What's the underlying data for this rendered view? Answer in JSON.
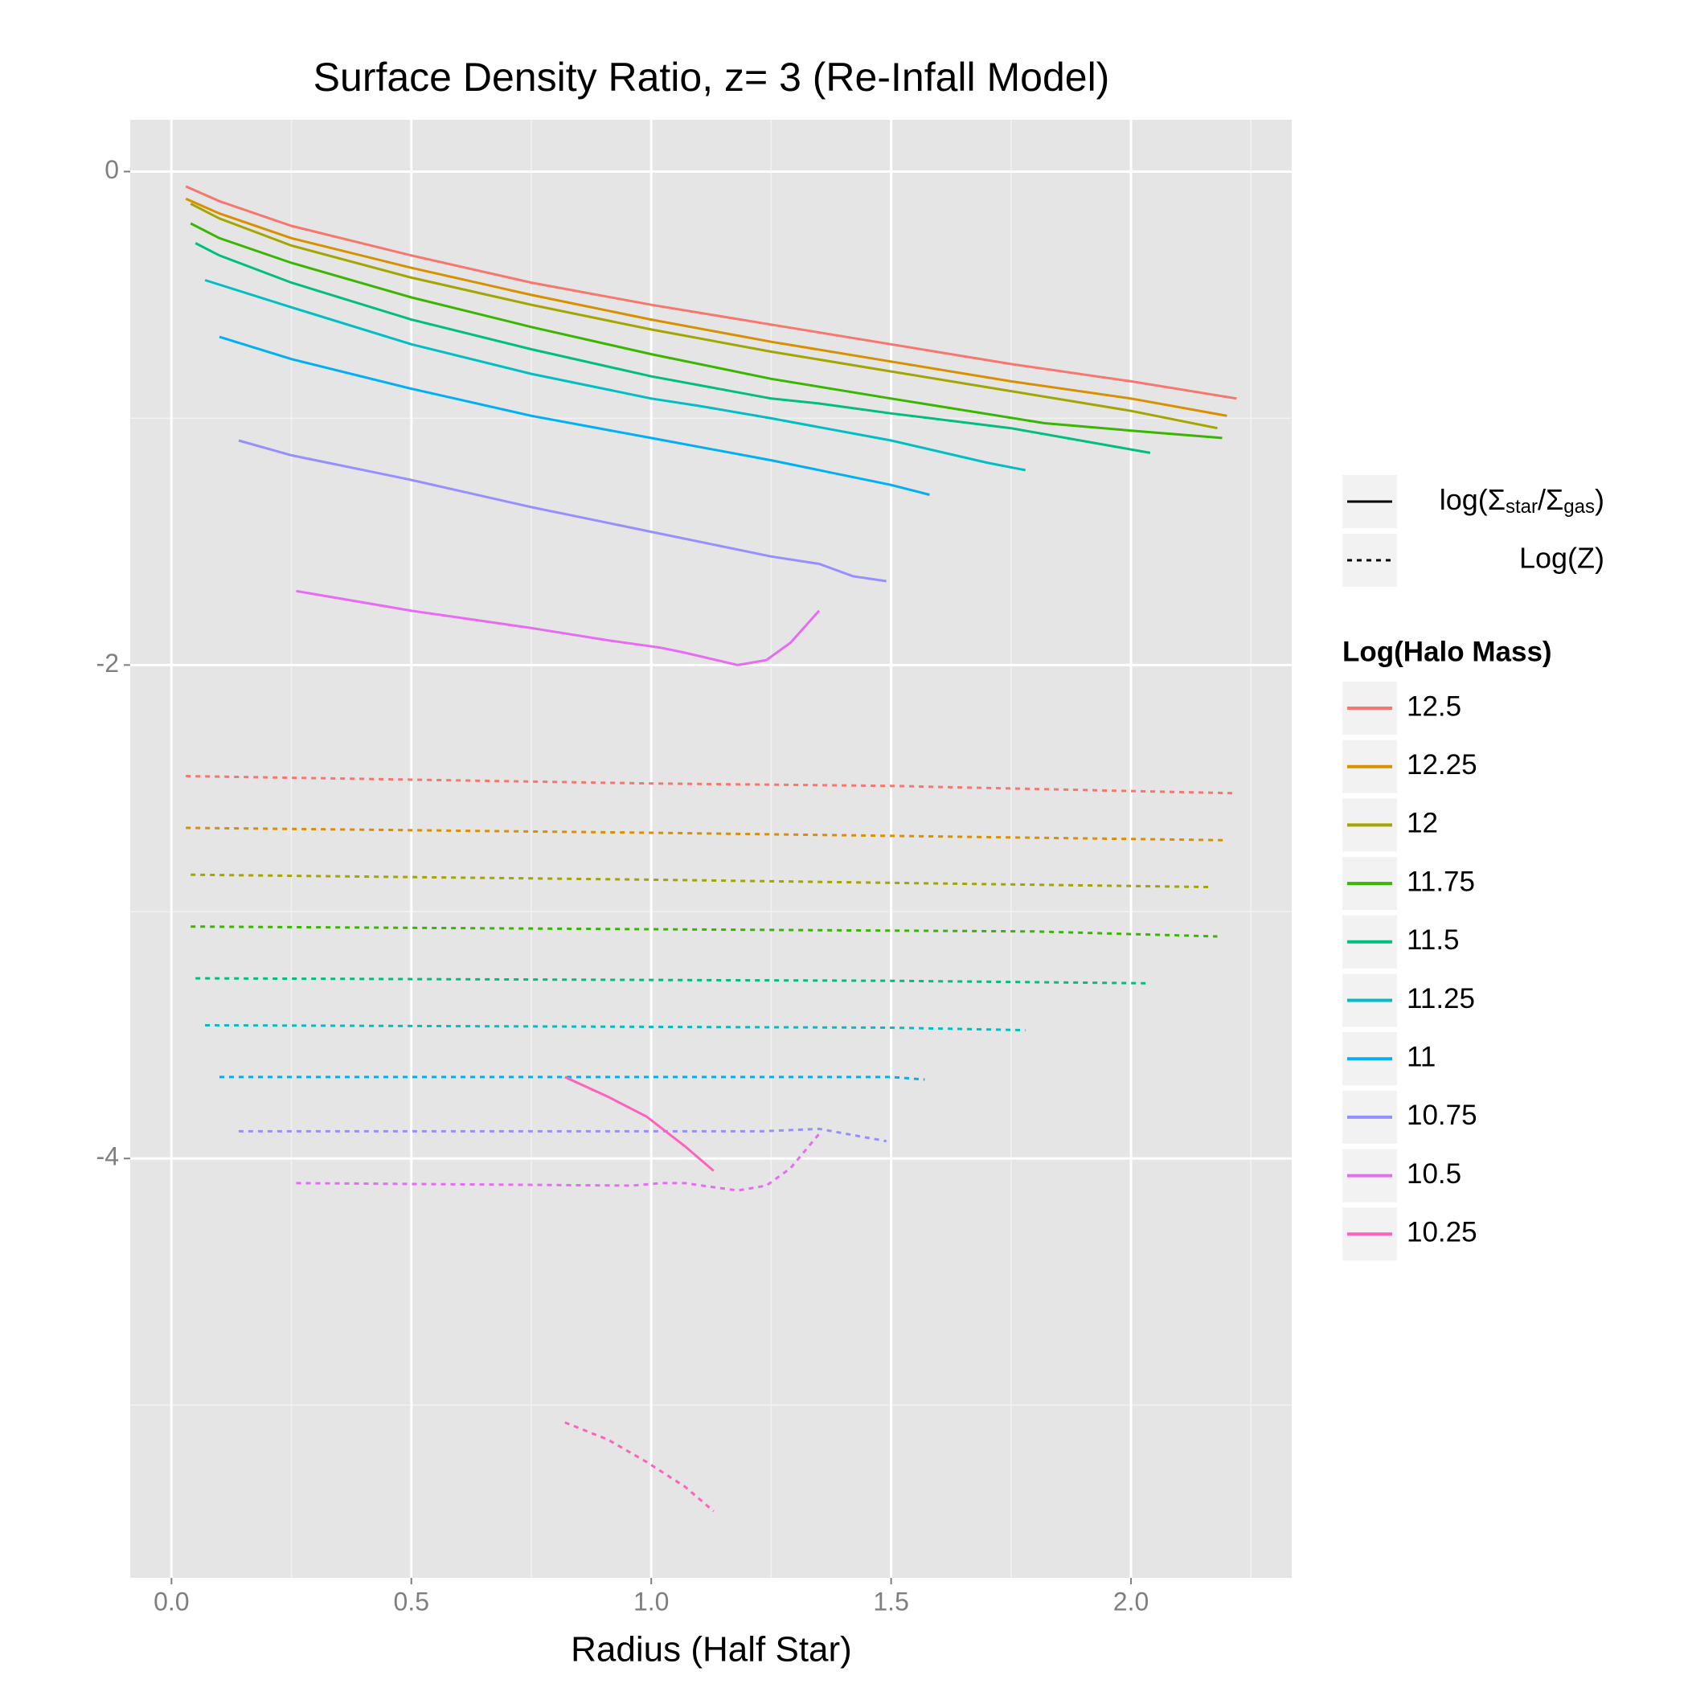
{
  "chart_data": {
    "type": "line",
    "title": "Surface Density Ratio, z= 3 (Re-Infall Model)",
    "x_label": "Radius (Half Star)",
    "xlim": [
      -0.086,
      2.335
    ],
    "ylim": [
      -5.7,
      0.21
    ],
    "xticks": [
      {
        "value": 0,
        "label": "0.0"
      },
      0.5,
      {
        "value": 1,
        "label": "1.0"
      },
      1.5,
      {
        "value": 2,
        "label": "2.0"
      }
    ],
    "yticks": [
      0,
      -2,
      -4
    ],
    "x_minor_breaks": [
      0.25,
      0.75,
      1.25,
      1.75,
      2.25
    ],
    "y_minor_breaks": [
      -1,
      -3,
      -5
    ],
    "grid": true,
    "linetype_legend": [
      [
        "log(Σ",
        "star",
        "/Σ",
        "gas",
        ")"
      ],
      "Log(Z)"
    ],
    "color_legend_title": "Log(Halo Mass)",
    "groups": [
      {
        "name": "12.5",
        "color": "#F8766D",
        "ratio_x": [
          0.03,
          0.1,
          0.25,
          0.5,
          0.75,
          1.0,
          1.25,
          1.5,
          1.75,
          2.0,
          2.22
        ],
        "ratio": [
          -0.06,
          -0.12,
          -0.22,
          -0.34,
          -0.45,
          -0.54,
          -0.62,
          -0.7,
          -0.78,
          -0.85,
          -0.92
        ],
        "logz_x": [
          0.03,
          1.0,
          1.5,
          2.22
        ],
        "logz": [
          -2.45,
          -2.48,
          -2.49,
          -2.52
        ]
      },
      {
        "name": "12.25",
        "color": "#D89000",
        "ratio_x": [
          0.03,
          0.1,
          0.25,
          0.5,
          0.75,
          1.0,
          1.25,
          1.5,
          1.75,
          2.0,
          2.2
        ],
        "ratio": [
          -0.11,
          -0.17,
          -0.27,
          -0.39,
          -0.5,
          -0.6,
          -0.69,
          -0.77,
          -0.85,
          -0.92,
          -0.99
        ],
        "logz_x": [
          0.03,
          1.0,
          2.2
        ],
        "logz": [
          -2.66,
          -2.68,
          -2.71
        ]
      },
      {
        "name": "12",
        "color": "#A3A500",
        "ratio_x": [
          0.04,
          0.1,
          0.25,
          0.5,
          0.75,
          1.0,
          1.25,
          1.5,
          1.75,
          2.0,
          2.18
        ],
        "ratio": [
          -0.13,
          -0.19,
          -0.3,
          -0.43,
          -0.54,
          -0.64,
          -0.73,
          -0.81,
          -0.89,
          -0.97,
          -1.04
        ],
        "logz_x": [
          0.04,
          1.0,
          2.17
        ],
        "logz": [
          -2.85,
          -2.87,
          -2.9
        ]
      },
      {
        "name": "11.75",
        "color": "#39B600",
        "ratio_x": [
          0.04,
          0.1,
          0.25,
          0.5,
          0.75,
          1.0,
          1.25,
          1.5,
          1.82,
          2.0,
          2.19
        ],
        "ratio": [
          -0.21,
          -0.27,
          -0.37,
          -0.51,
          -0.63,
          -0.74,
          -0.84,
          -0.92,
          -1.02,
          -1.05,
          -1.08
        ],
        "logz_x": [
          0.04,
          1.8,
          2.18
        ],
        "logz": [
          -3.06,
          -3.08,
          -3.1
        ]
      },
      {
        "name": "11.5",
        "color": "#00BF7D",
        "ratio_x": [
          0.05,
          0.1,
          0.25,
          0.5,
          0.75,
          1.0,
          1.25,
          1.35,
          1.5,
          1.75,
          2.04
        ],
        "ratio": [
          -0.29,
          -0.34,
          -0.45,
          -0.6,
          -0.72,
          -0.83,
          -0.92,
          -0.94,
          -0.98,
          -1.04,
          -1.14
        ],
        "logz_x": [
          0.05,
          1.5,
          2.04
        ],
        "logz": [
          -3.27,
          -3.28,
          -3.29
        ]
      },
      {
        "name": "11.25",
        "color": "#00BFC4",
        "ratio_x": [
          0.07,
          0.25,
          0.5,
          0.75,
          1.0,
          1.1,
          1.25,
          1.5,
          1.7,
          1.78
        ],
        "ratio": [
          -0.44,
          -0.55,
          -0.7,
          -0.82,
          -0.92,
          -0.95,
          -1.0,
          -1.09,
          -1.18,
          -1.21
        ],
        "logz_x": [
          0.07,
          1.5,
          1.78
        ],
        "logz": [
          -3.46,
          -3.47,
          -3.48
        ]
      },
      {
        "name": "11",
        "color": "#00B0F6",
        "ratio_x": [
          0.1,
          0.25,
          0.5,
          0.75,
          1.0,
          1.25,
          1.5,
          1.58
        ],
        "ratio": [
          -0.67,
          -0.76,
          -0.88,
          -0.99,
          -1.08,
          -1.17,
          -1.27,
          -1.31
        ],
        "logz_x": [
          0.1,
          1.5,
          1.57
        ],
        "logz": [
          -3.67,
          -3.67,
          -3.68
        ]
      },
      {
        "name": "10.75",
        "color": "#9590FF",
        "ratio_x": [
          0.14,
          0.25,
          0.5,
          0.75,
          1.0,
          1.25,
          1.35,
          1.42,
          1.49
        ],
        "ratio": [
          -1.09,
          -1.15,
          -1.25,
          -1.36,
          -1.46,
          -1.56,
          -1.59,
          -1.64,
          -1.66
        ],
        "logz_x": [
          0.14,
          1.23,
          1.35,
          1.49
        ],
        "logz": [
          -3.89,
          -3.89,
          -3.88,
          -3.93
        ]
      },
      {
        "name": "10.5",
        "color": "#E76BF3",
        "ratio_x": [
          0.26,
          0.5,
          0.75,
          0.91,
          1.02,
          1.07,
          1.18,
          1.24,
          1.29,
          1.35
        ],
        "ratio": [
          -1.7,
          -1.78,
          -1.85,
          -1.9,
          -1.93,
          -1.95,
          -2.0,
          -1.98,
          -1.91,
          -1.78
        ],
        "logz_x": [
          0.26,
          0.96,
          1.02,
          1.07,
          1.18,
          1.24,
          1.29,
          1.35
        ],
        "logz": [
          -4.1,
          -4.11,
          -4.1,
          -4.1,
          -4.13,
          -4.11,
          -4.04,
          -3.9
        ]
      },
      {
        "name": "10.25",
        "color": "#FF62BC",
        "ratio_x": [
          0.82,
          0.91,
          0.99,
          1.07,
          1.13
        ],
        "ratio": [
          -3.67,
          -3.75,
          -3.83,
          -3.95,
          -4.05
        ],
        "logz_x": [
          0.82,
          0.91,
          0.99,
          1.07,
          1.13
        ],
        "logz": [
          -5.07,
          -5.14,
          -5.23,
          -5.33,
          -5.43
        ]
      }
    ]
  }
}
